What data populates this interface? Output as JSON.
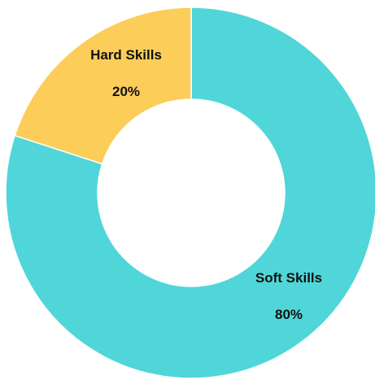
{
  "chart_data": {
    "type": "pie",
    "variant": "donut",
    "start": "top",
    "direction": "clockwise",
    "slices": [
      {
        "name": "Soft Skills",
        "value": 80,
        "label": "80%",
        "color": "#50d6d8"
      },
      {
        "name": "Hard Skills",
        "value": 20,
        "label": "20%",
        "color": "#fdcd5a"
      }
    ],
    "legend": "none"
  }
}
